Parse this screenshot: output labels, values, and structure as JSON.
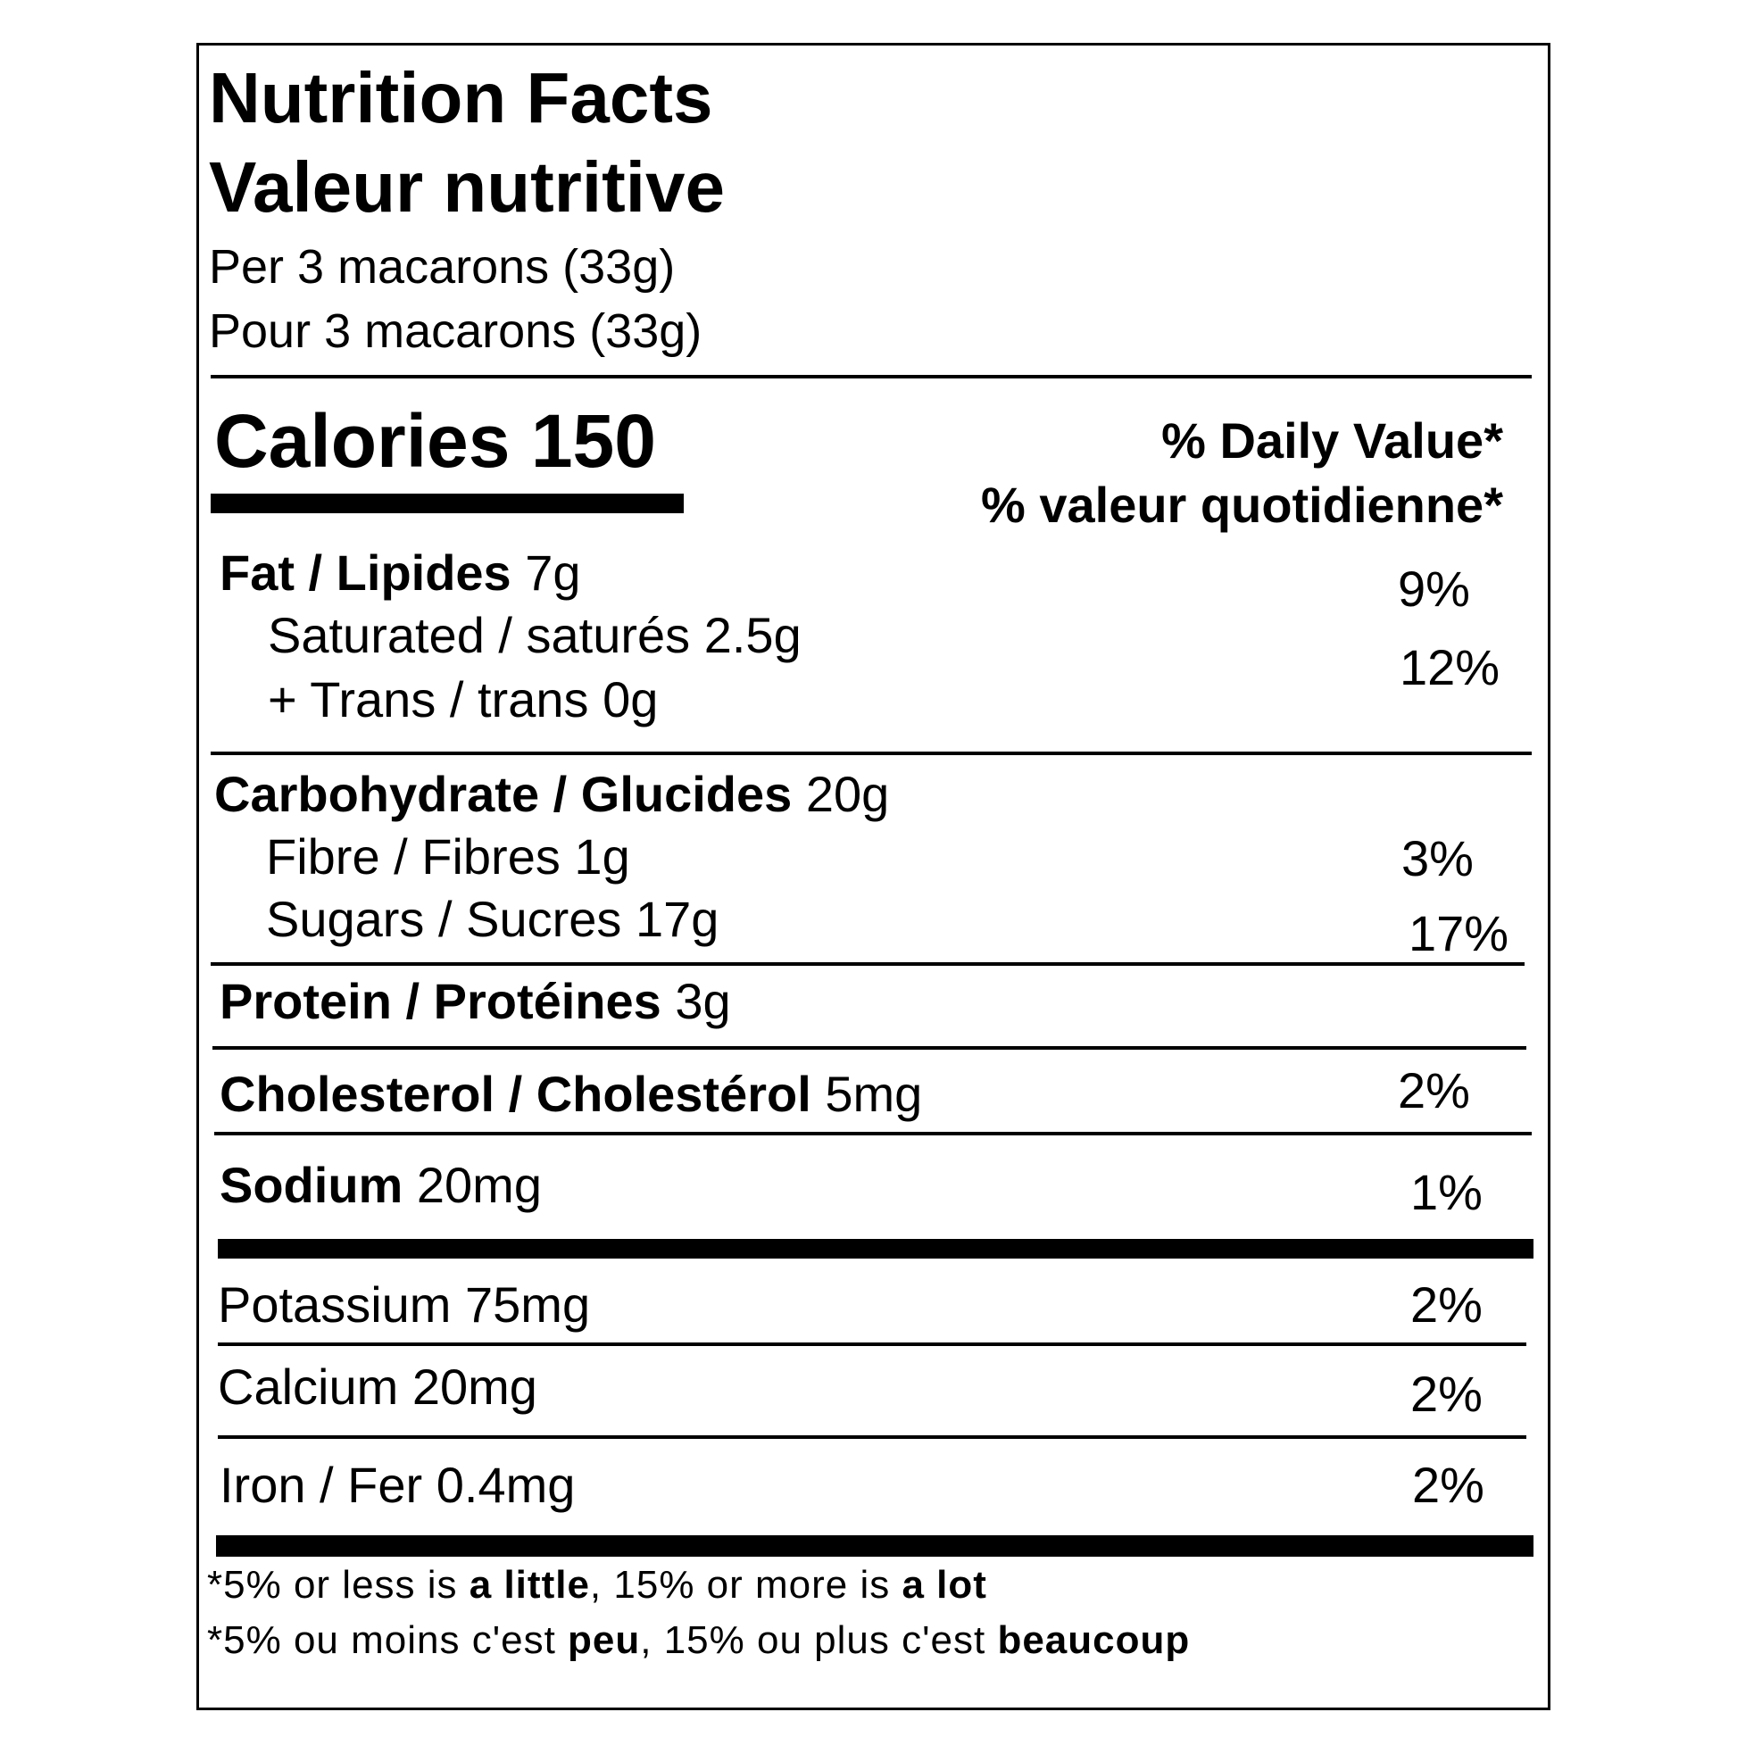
{
  "header": {
    "title_en": "Nutrition Facts",
    "title_fr": "Valeur nutritive",
    "serving_en": "Per 3 macarons (33g)",
    "serving_fr": "Pour 3 macarons (33g)"
  },
  "calories": {
    "label": "Calories",
    "value": "150"
  },
  "daily_value": {
    "heading_en": "% Daily Value*",
    "heading_fr": "% valeur quotidienne*"
  },
  "nutrients": {
    "fat": {
      "label": "Fat / Lipides",
      "amount": "7g",
      "dv": "9%"
    },
    "saturated": {
      "label": "Saturated / saturés",
      "amount": "2.5g"
    },
    "trans": {
      "label": "+ Trans / trans",
      "amount": "0g"
    },
    "sat_trans_dv": "12%",
    "carbohydrate": {
      "label": "Carbohydrate / Glucides",
      "amount": "20g"
    },
    "fibre": {
      "label": "Fibre / Fibres",
      "amount": "1g",
      "dv": "3%"
    },
    "sugars": {
      "label": "Sugars / Sucres",
      "amount": "17g",
      "dv": "17%"
    },
    "protein": {
      "label": "Protein / Protéines",
      "amount": "3g"
    },
    "cholesterol": {
      "label": "Cholesterol / Cholestérol",
      "amount": "5mg",
      "dv": "2%"
    },
    "sodium": {
      "label": "Sodium",
      "amount": "20mg",
      "dv": "1%"
    },
    "potassium": {
      "label": "Potassium",
      "amount": "75mg",
      "dv": "2%"
    },
    "calcium": {
      "label": "Calcium",
      "amount": "20mg",
      "dv": "2%"
    },
    "iron": {
      "label": "Iron / Fer",
      "amount": "0.4mg",
      "dv": "2%"
    }
  },
  "footnote": {
    "en_prefix": "*5% or less is ",
    "en_little": "a little",
    "en_mid": ", 15% or more is ",
    "en_lot": "a lot",
    "fr_prefix": "*5% ou moins c'est ",
    "fr_peu": "peu",
    "fr_mid": ", 15% ou plus c'est ",
    "fr_beaucoup": "beaucoup"
  }
}
